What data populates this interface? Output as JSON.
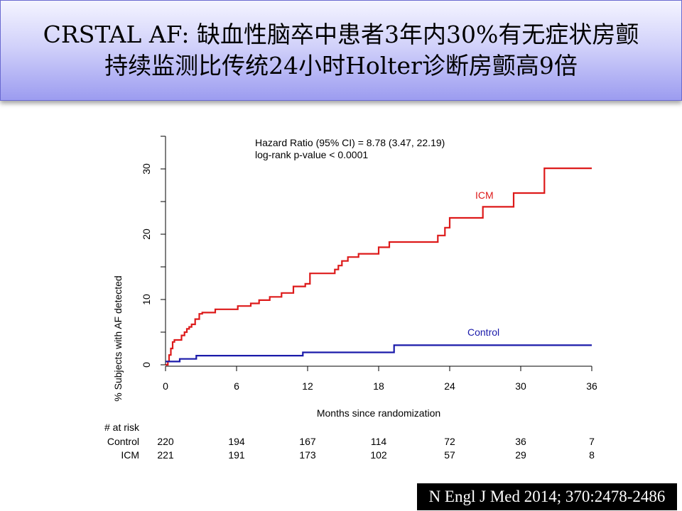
{
  "slide": {
    "title_line1": "CRSTAL AF: 缺血性脑卒中患者3年内30%有无症状房颤",
    "title_line2": "持续监测比传统24小时Holter诊断房颤高9倍",
    "citation": "N Engl J Med 2014; 370:2478-2486"
  },
  "chart_data": {
    "type": "line",
    "title": "",
    "xlabel": "Months since randomization",
    "ylabel": "% Subjects with AF detected",
    "xlim": [
      0,
      36
    ],
    "ylim": [
      0,
      35
    ],
    "x_ticks": [
      0,
      6,
      12,
      18,
      24,
      30,
      36
    ],
    "y_ticks": [
      0,
      10,
      20,
      30
    ],
    "grid": false,
    "annotation_lines": [
      "Hazard Ratio (95% CI) = 8.78 (3.47, 22.19)",
      "log-rank p-value < 0.0001"
    ],
    "series": [
      {
        "name": "ICM",
        "color": "#dd1a1a",
        "step": true,
        "x": [
          0,
          0.2,
          0.3,
          0.45,
          0.6,
          0.75,
          0.85,
          1.35,
          1.6,
          1.8,
          2.0,
          2.2,
          2.5,
          2.85,
          3.1,
          4.2,
          6.1,
          7.2,
          7.9,
          8.8,
          9.8,
          10.8,
          11.8,
          12.2,
          14.3,
          14.6,
          14.9,
          15.4,
          16.3,
          18.0,
          18.9,
          23.0,
          23.6,
          24.0,
          26.8,
          29.4,
          32.0,
          36
        ],
        "y": [
          0,
          0.5,
          1.5,
          2.5,
          3.5,
          3.8,
          3.8,
          4.5,
          5.0,
          5.5,
          5.8,
          6.2,
          7.0,
          7.8,
          8.0,
          8.5,
          9.0,
          9.4,
          9.9,
          10.4,
          11.0,
          12.0,
          12.4,
          14.0,
          14.6,
          15.2,
          15.9,
          16.5,
          17.0,
          18.0,
          18.8,
          19.8,
          21.0,
          22.5,
          24.2,
          26.3,
          30.1,
          30.1
        ]
      },
      {
        "name": "Control",
        "color": "#1a1aaa",
        "step": true,
        "x": [
          0,
          1.2,
          2.6,
          11.6,
          19.3,
          36
        ],
        "y": [
          0.5,
          0.9,
          1.4,
          1.9,
          3.0,
          3.0
        ]
      }
    ],
    "risk_table": {
      "header": "# at risk",
      "months": [
        0,
        6,
        12,
        18,
        24,
        30,
        36
      ],
      "rows": [
        {
          "label": "Control",
          "values": [
            220,
            194,
            167,
            114,
            72,
            36,
            7
          ]
        },
        {
          "label": "ICM",
          "values": [
            221,
            191,
            173,
            102,
            57,
            29,
            8
          ]
        }
      ]
    }
  }
}
